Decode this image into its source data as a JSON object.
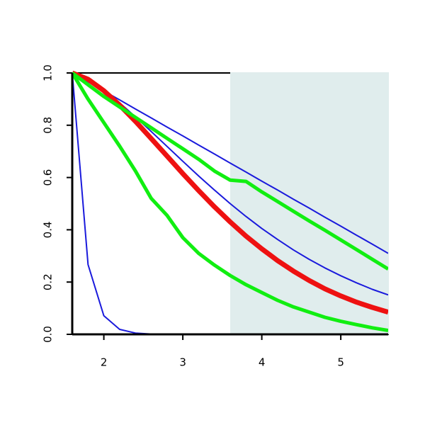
{
  "chart_data": {
    "type": "line",
    "x": [
      1.6,
      1.8,
      2.0,
      2.2,
      2.4,
      2.6,
      2.8,
      3.0,
      3.2,
      3.4,
      3.6,
      3.8,
      4.0,
      4.2,
      4.4,
      4.6,
      4.8,
      5.0,
      5.2,
      5.4,
      5.6
    ],
    "series": [
      {
        "color": "#1a1adc",
        "width": 2,
        "values": [
          1,
          0.966,
          0.931,
          0.897,
          0.862,
          0.828,
          0.793,
          0.759,
          0.724,
          0.69,
          0.655,
          0.621,
          0.586,
          0.552,
          0.517,
          0.483,
          0.448,
          0.414,
          0.379,
          0.345,
          0.31
        ]
      },
      {
        "color": "#1a1adc",
        "width": 2,
        "values": [
          1,
          0.976,
          0.935,
          0.886,
          0.832,
          0.776,
          0.719,
          0.662,
          0.606,
          0.552,
          0.5,
          0.451,
          0.405,
          0.363,
          0.323,
          0.287,
          0.254,
          0.224,
          0.197,
          0.172,
          0.151
        ]
      },
      {
        "color": "#1a1adc",
        "width": 2,
        "values": [
          1,
          0.267,
          0.071,
          0.019,
          0.005,
          0.001,
          0,
          0,
          0,
          0,
          0,
          0,
          0,
          0,
          0,
          0,
          0,
          0,
          0,
          0,
          0
        ]
      },
      {
        "color": "#ee1111",
        "width": 7,
        "values": [
          1,
          0.976,
          0.932,
          0.877,
          0.815,
          0.749,
          0.682,
          0.615,
          0.55,
          0.488,
          0.43,
          0.376,
          0.327,
          0.282,
          0.242,
          0.206,
          0.174,
          0.147,
          0.123,
          0.103,
          0.085
        ]
      },
      {
        "color": "#11ee11",
        "width": 5,
        "values": [
          1,
          0.955,
          0.91,
          0.87,
          0.83,
          0.79,
          0.75,
          0.71,
          0.67,
          0.625,
          0.59,
          0.585,
          0.545,
          0.508,
          0.471,
          0.434,
          0.398,
          0.361,
          0.324,
          0.287,
          0.25
        ]
      },
      {
        "color": "#11ee11",
        "width": 5,
        "values": [
          1,
          0.9,
          0.81,
          0.72,
          0.625,
          0.52,
          0.455,
          0.37,
          0.31,
          0.265,
          0.225,
          0.19,
          0.16,
          0.13,
          0.105,
          0.085,
          0.065,
          0.05,
          0.037,
          0.025,
          0.015
        ]
      }
    ],
    "shade": {
      "xrange": [
        3.6,
        5.6
      ],
      "color": "#e0eded"
    },
    "xlim": [
      1.6,
      5.6
    ],
    "ylim": [
      0,
      1
    ],
    "xticks": [
      2,
      3,
      4,
      5
    ],
    "yticks": [
      {
        "value": 0,
        "label": "0.0"
      },
      {
        "value": 0.2,
        "label": "0.2"
      },
      {
        "value": 0.4,
        "label": "0.4"
      },
      {
        "value": 0.6,
        "label": "0.6"
      },
      {
        "value": 0.8,
        "label": "0.8"
      },
      {
        "value": 1,
        "label": "1.0"
      }
    ]
  }
}
